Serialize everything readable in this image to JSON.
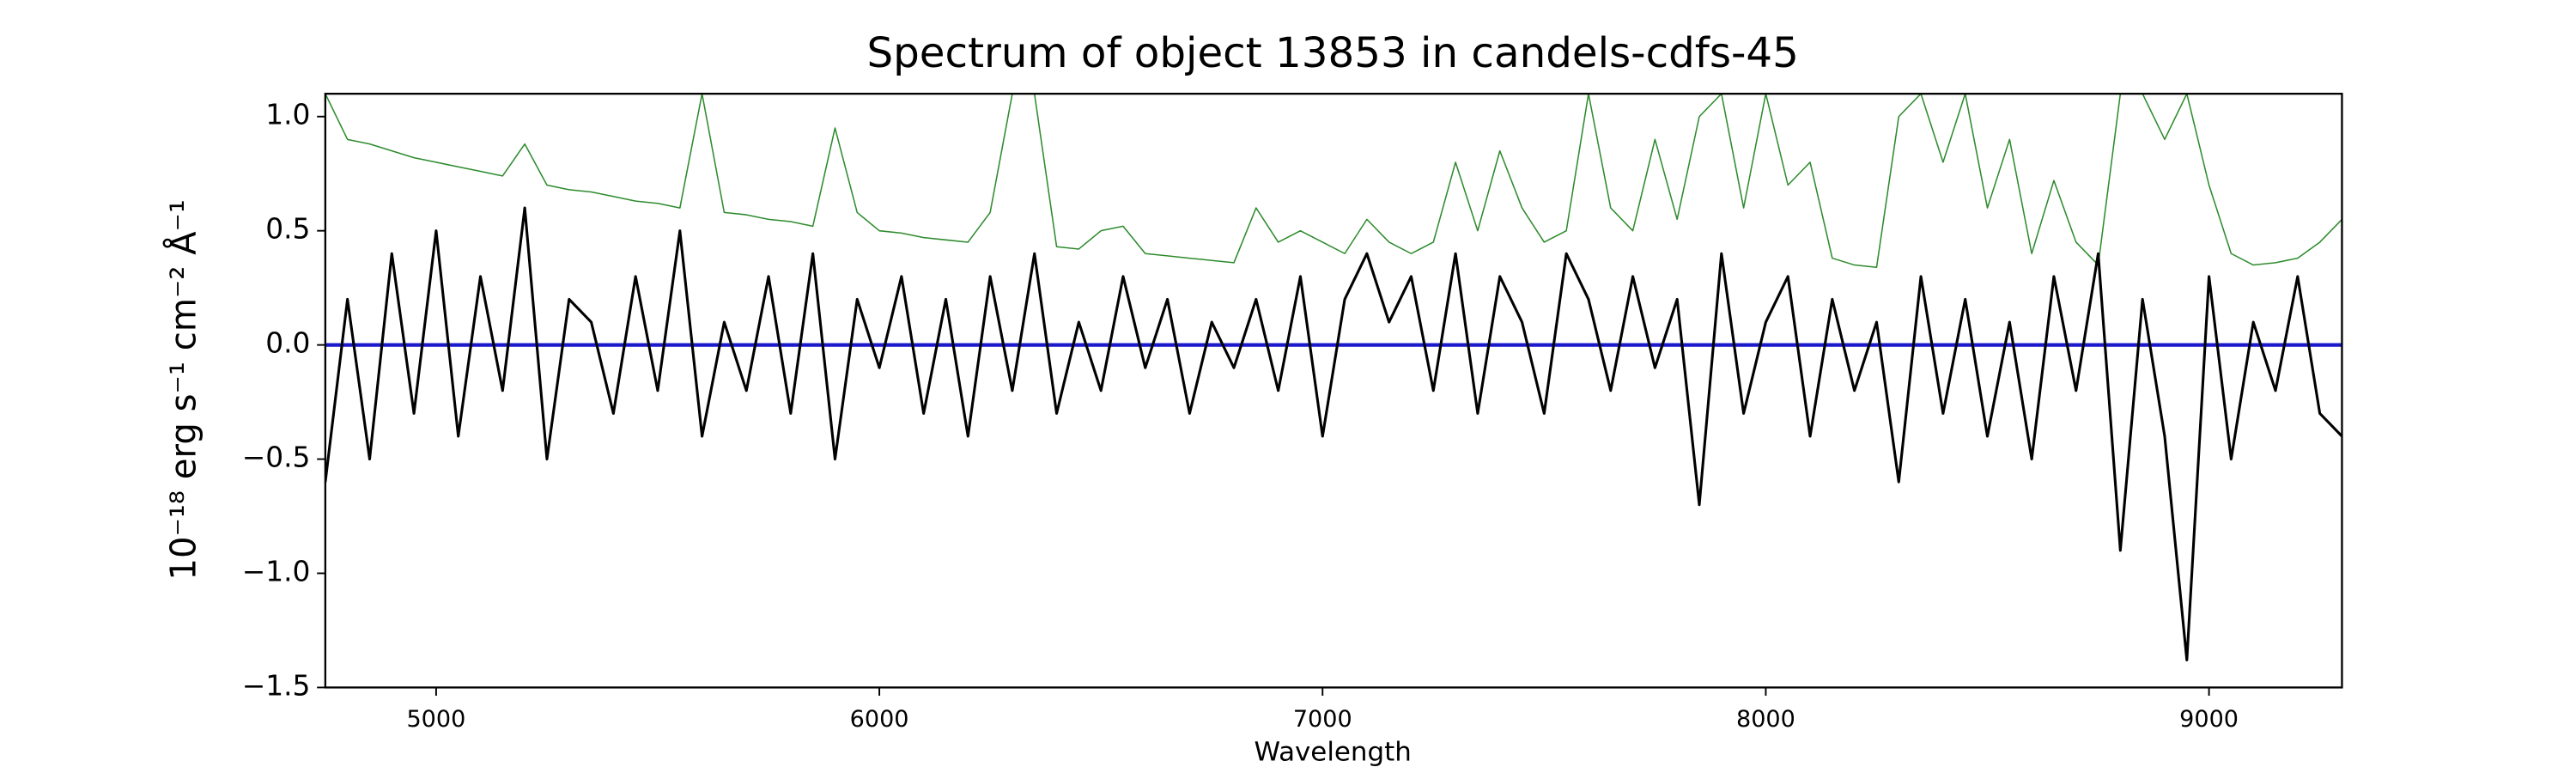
{
  "chart_data": {
    "type": "line",
    "title": "Spectrum of object 13853 in candels-cdfs-45",
    "x_label": "Wavelength",
    "y_label": "10⁻¹⁸ erg s⁻¹ cm⁻² Å⁻¹",
    "x": [
      4750,
      4800,
      4850,
      4900,
      4950,
      5000,
      5050,
      5100,
      5150,
      5200,
      5250,
      5300,
      5350,
      5400,
      5450,
      5500,
      5550,
      5600,
      5650,
      5700,
      5750,
      5800,
      5850,
      5900,
      5950,
      6000,
      6050,
      6100,
      6150,
      6200,
      6250,
      6300,
      6350,
      6400,
      6450,
      6500,
      6550,
      6600,
      6650,
      6700,
      6750,
      6800,
      6850,
      6900,
      6950,
      7000,
      7050,
      7100,
      7150,
      7200,
      7250,
      7300,
      7350,
      7400,
      7450,
      7500,
      7550,
      7600,
      7650,
      7700,
      7750,
      7800,
      7850,
      7900,
      7950,
      8000,
      8050,
      8100,
      8150,
      8200,
      8250,
      8300,
      8350,
      8400,
      8450,
      8500,
      8550,
      8600,
      8650,
      8700,
      8750,
      8800,
      8850,
      8900,
      8950,
      9000,
      9050,
      9100,
      9150,
      9200,
      9250,
      9300
    ],
    "series": [
      {
        "color": "#2e8b2e",
        "width": 0.8,
        "values": [
          1.1,
          0.9,
          0.88,
          0.85,
          0.82,
          0.8,
          0.78,
          0.76,
          0.74,
          0.88,
          0.7,
          0.68,
          0.67,
          0.65,
          0.63,
          0.62,
          0.6,
          1.1,
          0.58,
          0.57,
          0.55,
          0.54,
          0.52,
          0.95,
          0.58,
          0.5,
          0.49,
          0.47,
          0.46,
          0.45,
          0.58,
          1.1,
          1.1,
          0.43,
          0.42,
          0.5,
          0.52,
          0.4,
          0.39,
          0.38,
          0.37,
          0.36,
          0.6,
          0.45,
          0.5,
          0.45,
          0.4,
          0.55,
          0.45,
          0.4,
          0.45,
          0.8,
          0.5,
          0.85,
          0.6,
          0.45,
          0.5,
          1.1,
          0.6,
          0.5,
          0.9,
          0.55,
          1.0,
          1.1,
          0.6,
          1.1,
          0.7,
          0.8,
          0.38,
          0.35,
          0.34,
          1.0,
          1.1,
          0.8,
          1.1,
          0.6,
          0.9,
          0.4,
          0.72,
          0.45,
          0.35,
          1.1,
          1.1,
          0.9,
          1.1,
          0.7,
          0.4,
          0.35,
          0.36,
          0.38,
          0.45,
          0.55
        ]
      },
      {
        "color": "#000000",
        "width": 1.6,
        "values": [
          -0.6,
          0.2,
          -0.5,
          0.4,
          -0.3,
          0.5,
          -0.4,
          0.3,
          -0.2,
          0.6,
          -0.5,
          0.2,
          0.1,
          -0.3,
          0.3,
          -0.2,
          0.5,
          -0.4,
          0.1,
          -0.2,
          0.3,
          -0.3,
          0.4,
          -0.5,
          0.2,
          -0.1,
          0.3,
          -0.3,
          0.2,
          -0.4,
          0.3,
          -0.2,
          0.4,
          -0.3,
          0.1,
          -0.2,
          0.3,
          -0.1,
          0.2,
          -0.3,
          0.1,
          -0.1,
          0.2,
          -0.2,
          0.3,
          -0.4,
          0.2,
          0.4,
          0.1,
          0.3,
          -0.2,
          0.4,
          -0.3,
          0.3,
          0.1,
          -0.3,
          0.4,
          0.2,
          -0.2,
          0.3,
          -0.1,
          0.2,
          -0.7,
          0.4,
          -0.3,
          0.1,
          0.3,
          -0.4,
          0.2,
          -0.2,
          0.1,
          -0.6,
          0.3,
          -0.3,
          0.2,
          -0.4,
          0.1,
          -0.5,
          0.3,
          -0.2,
          0.4,
          -0.9,
          0.2,
          -0.4,
          -1.38,
          0.3,
          -0.5,
          0.1,
          -0.2,
          0.3,
          -0.3,
          -0.4
        ]
      }
    ],
    "reference_line": {
      "y": 0,
      "color": "#1a1acc"
    },
    "xlim": [
      4750,
      9300
    ],
    "ylim": [
      -1.5,
      1.1
    ],
    "xticks": [
      5000,
      6000,
      7000,
      8000,
      9000
    ],
    "yticks": [
      {
        "value": -1.5,
        "label": "−1.5"
      },
      {
        "value": -1.0,
        "label": "−1.0"
      },
      {
        "value": -0.5,
        "label": "−0.5"
      },
      {
        "value": 0,
        "label": "0.0"
      },
      {
        "value": 0.5,
        "label": "0.5"
      },
      {
        "value": 1.0,
        "label": "1.0"
      }
    ],
    "grid": false
  }
}
